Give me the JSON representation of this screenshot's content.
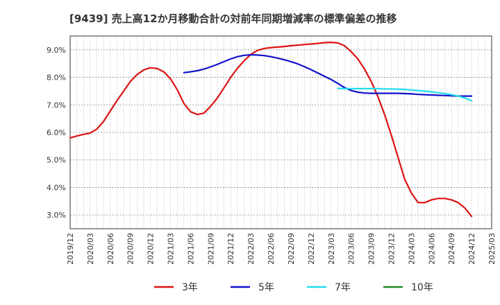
{
  "chart_data": {
    "type": "line",
    "title": "[9439]  売上高12か月移動合計の対前年同期増減率の標準偏差の推移",
    "xlabel": "",
    "ylabel": "",
    "ylim": [
      2.5,
      9.5
    ],
    "yticks": [
      "3.0%",
      "4.0%",
      "5.0%",
      "6.0%",
      "7.0%",
      "8.0%",
      "9.0%"
    ],
    "ytick_values": [
      3,
      4,
      5,
      6,
      7,
      8,
      9
    ],
    "xticks": [
      "2019/12",
      "2020/03",
      "2020/06",
      "2020/09",
      "2020/12",
      "2021/03",
      "2021/06",
      "2021/09",
      "2021/12",
      "2022/03",
      "2022/06",
      "2022/09",
      "2022/12",
      "2023/03",
      "2023/06",
      "2023/09",
      "2023/12",
      "2024/03",
      "2024/06",
      "2024/09",
      "2024/12",
      "2025/03"
    ],
    "grid": true,
    "legend_position": "bottom",
    "series": [
      {
        "name": "3年",
        "color": "#dd1111",
        "points": [
          [
            "2019/12",
            5.8
          ],
          [
            "2020/01",
            5.87
          ],
          [
            "2020/02",
            5.93
          ],
          [
            "2020/03",
            5.98
          ],
          [
            "2020/04",
            6.12
          ],
          [
            "2020/05",
            6.4
          ],
          [
            "2020/06",
            6.78
          ],
          [
            "2020/07",
            7.15
          ],
          [
            "2020/08",
            7.5
          ],
          [
            "2020/09",
            7.85
          ],
          [
            "2020/10",
            8.1
          ],
          [
            "2020/11",
            8.27
          ],
          [
            "2020/12",
            8.35
          ],
          [
            "2020/13",
            8.32
          ],
          [
            "2021/02",
            8.2
          ],
          [
            "2021/03",
            7.95
          ],
          [
            "2021/04",
            7.55
          ],
          [
            "2021/05",
            7.05
          ],
          [
            "2021/06",
            6.75
          ],
          [
            "2021/07",
            6.65
          ],
          [
            "2021/08",
            6.7
          ],
          [
            "2021/09",
            6.95
          ],
          [
            "2021/10",
            7.25
          ],
          [
            "2021/11",
            7.62
          ],
          [
            "2021/12",
            8.0
          ],
          [
            "2022/01",
            8.33
          ],
          [
            "2022/02",
            8.6
          ],
          [
            "2022/03",
            8.83
          ],
          [
            "2022/04",
            8.98
          ],
          [
            "2022/05",
            9.05
          ],
          [
            "2022/06",
            9.08
          ],
          [
            "2022/07",
            9.1
          ],
          [
            "2022/08",
            9.12
          ],
          [
            "2022/09",
            9.15
          ],
          [
            "2022/10",
            9.17
          ],
          [
            "2022/11",
            9.19
          ],
          [
            "2022/12",
            9.21
          ],
          [
            "2023/01",
            9.23
          ],
          [
            "2023/02",
            9.26
          ],
          [
            "2023/03",
            9.27
          ],
          [
            "2023/04",
            9.25
          ],
          [
            "2023/05",
            9.15
          ],
          [
            "2023/06",
            8.93
          ],
          [
            "2023/07",
            8.67
          ],
          [
            "2023/08",
            8.3
          ],
          [
            "2023/09",
            7.85
          ],
          [
            "2023/10",
            7.3
          ],
          [
            "2023/11",
            6.65
          ],
          [
            "2023/12",
            5.9
          ],
          [
            "2024/01",
            5.1
          ],
          [
            "2024/02",
            4.3
          ],
          [
            "2024/03",
            3.8
          ],
          [
            "2024/04",
            3.45
          ],
          [
            "2024/05",
            3.45
          ],
          [
            "2024/06",
            3.55
          ],
          [
            "2024/07",
            3.6
          ],
          [
            "2024/08",
            3.6
          ],
          [
            "2024/09",
            3.55
          ],
          [
            "2024/10",
            3.45
          ],
          [
            "2024/11",
            3.25
          ],
          [
            "2024/12",
            2.95
          ]
        ]
      },
      {
        "name": "5年",
        "color": "#1111cc",
        "points": [
          [
            "2021/05",
            8.17
          ],
          [
            "2021/06",
            8.2
          ],
          [
            "2021/07",
            8.24
          ],
          [
            "2021/08",
            8.3
          ],
          [
            "2021/09",
            8.38
          ],
          [
            "2021/10",
            8.47
          ],
          [
            "2021/11",
            8.57
          ],
          [
            "2021/12",
            8.67
          ],
          [
            "2022/01",
            8.75
          ],
          [
            "2022/02",
            8.8
          ],
          [
            "2022/03",
            8.82
          ],
          [
            "2022/04",
            8.81
          ],
          [
            "2022/05",
            8.79
          ],
          [
            "2022/06",
            8.75
          ],
          [
            "2022/07",
            8.7
          ],
          [
            "2022/08",
            8.64
          ],
          [
            "2022/09",
            8.57
          ],
          [
            "2022/10",
            8.49
          ],
          [
            "2022/11",
            8.39
          ],
          [
            "2022/12",
            8.28
          ],
          [
            "2023/01",
            8.16
          ],
          [
            "2023/02",
            8.04
          ],
          [
            "2023/03",
            7.92
          ],
          [
            "2023/04",
            7.78
          ],
          [
            "2023/05",
            7.63
          ],
          [
            "2023/06",
            7.52
          ],
          [
            "2023/07",
            7.46
          ],
          [
            "2023/08",
            7.43
          ],
          [
            "2023/09",
            7.42
          ],
          [
            "2023/10",
            7.42
          ],
          [
            "2023/11",
            7.42
          ],
          [
            "2023/12",
            7.42
          ],
          [
            "2024/01",
            7.42
          ],
          [
            "2024/02",
            7.41
          ],
          [
            "2024/03",
            7.4
          ],
          [
            "2024/04",
            7.38
          ],
          [
            "2024/05",
            7.37
          ],
          [
            "2024/06",
            7.36
          ],
          [
            "2024/07",
            7.35
          ],
          [
            "2024/08",
            7.34
          ],
          [
            "2024/09",
            7.33
          ],
          [
            "2024/10",
            7.32
          ],
          [
            "2024/11",
            7.32
          ],
          [
            "2024/12",
            7.32
          ]
        ]
      },
      {
        "name": "7年",
        "color": "#22ddee",
        "points": [
          [
            "2023/04",
            7.6
          ],
          [
            "2023/05",
            7.59
          ],
          [
            "2023/06",
            7.59
          ],
          [
            "2023/07",
            7.59
          ],
          [
            "2023/08",
            7.59
          ],
          [
            "2023/09",
            7.59
          ],
          [
            "2023/10",
            7.59
          ],
          [
            "2023/11",
            7.58
          ],
          [
            "2023/12",
            7.58
          ],
          [
            "2024/01",
            7.57
          ],
          [
            "2024/02",
            7.56
          ],
          [
            "2024/03",
            7.54
          ],
          [
            "2024/04",
            7.52
          ],
          [
            "2024/05",
            7.5
          ],
          [
            "2024/06",
            7.47
          ],
          [
            "2024/07",
            7.44
          ],
          [
            "2024/08",
            7.41
          ],
          [
            "2024/09",
            7.37
          ],
          [
            "2024/10",
            7.32
          ],
          [
            "2024/11",
            7.25
          ],
          [
            "2024/12",
            7.15
          ]
        ]
      },
      {
        "name": "10年",
        "color": "#228822",
        "points": []
      }
    ]
  }
}
